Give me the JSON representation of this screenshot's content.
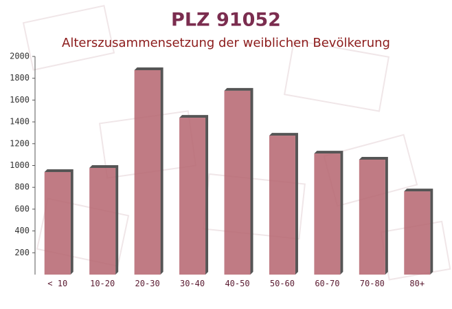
{
  "chart_data": {
    "type": "bar",
    "title": "PLZ 91052",
    "subtitle": "Alterszusammensetzung der weiblichen Bevölkerung",
    "categories": [
      "< 10",
      "10-20",
      "20-30",
      "30-40",
      "40-50",
      "50-60",
      "60-70",
      "70-80",
      "80+"
    ],
    "values": [
      940,
      978,
      1874,
      1438,
      1685,
      1274,
      1110,
      1054,
      763
    ],
    "color": "#b5646e",
    "ylim": [
      0,
      2000
    ],
    "yticks": [
      200,
      400,
      600,
      800,
      1000,
      1200,
      1400,
      1600,
      1800,
      2000
    ]
  }
}
